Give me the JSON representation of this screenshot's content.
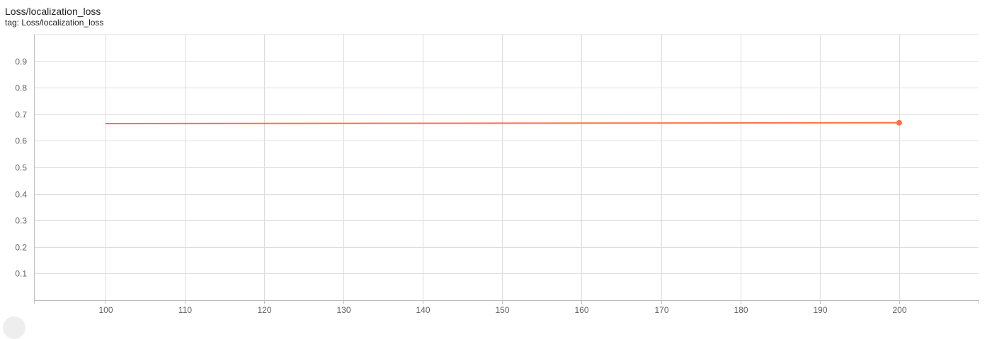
{
  "card": {
    "title": "Loss/localization_loss",
    "tag": "tag: Loss/localization_loss"
  },
  "colors": {
    "series": "#ff7043",
    "grid": "#dddddd",
    "axis": "#bdbdbd",
    "tick_text": "#616161"
  },
  "chart_data": {
    "type": "line",
    "title": "",
    "xlabel": "",
    "ylabel": "",
    "xlim": [
      91,
      210
    ],
    "ylim": [
      0,
      1
    ],
    "x_ticks": [
      100,
      110,
      120,
      130,
      140,
      150,
      160,
      170,
      180,
      190,
      200
    ],
    "y_ticks": [
      0.1,
      0.2,
      0.3,
      0.4,
      0.5,
      0.6,
      0.7,
      0.8,
      0.9
    ],
    "y_tick_labels": [
      "0.1",
      "0.2",
      "0.3",
      "0.4",
      "0.5",
      "0.6",
      "0.7",
      "0.8",
      "0.9"
    ],
    "grid": true,
    "legend": "none",
    "series": [
      {
        "color": "#ff7043",
        "x": [
          100,
          200
        ],
        "y": [
          0.665,
          0.668
        ]
      }
    ]
  }
}
